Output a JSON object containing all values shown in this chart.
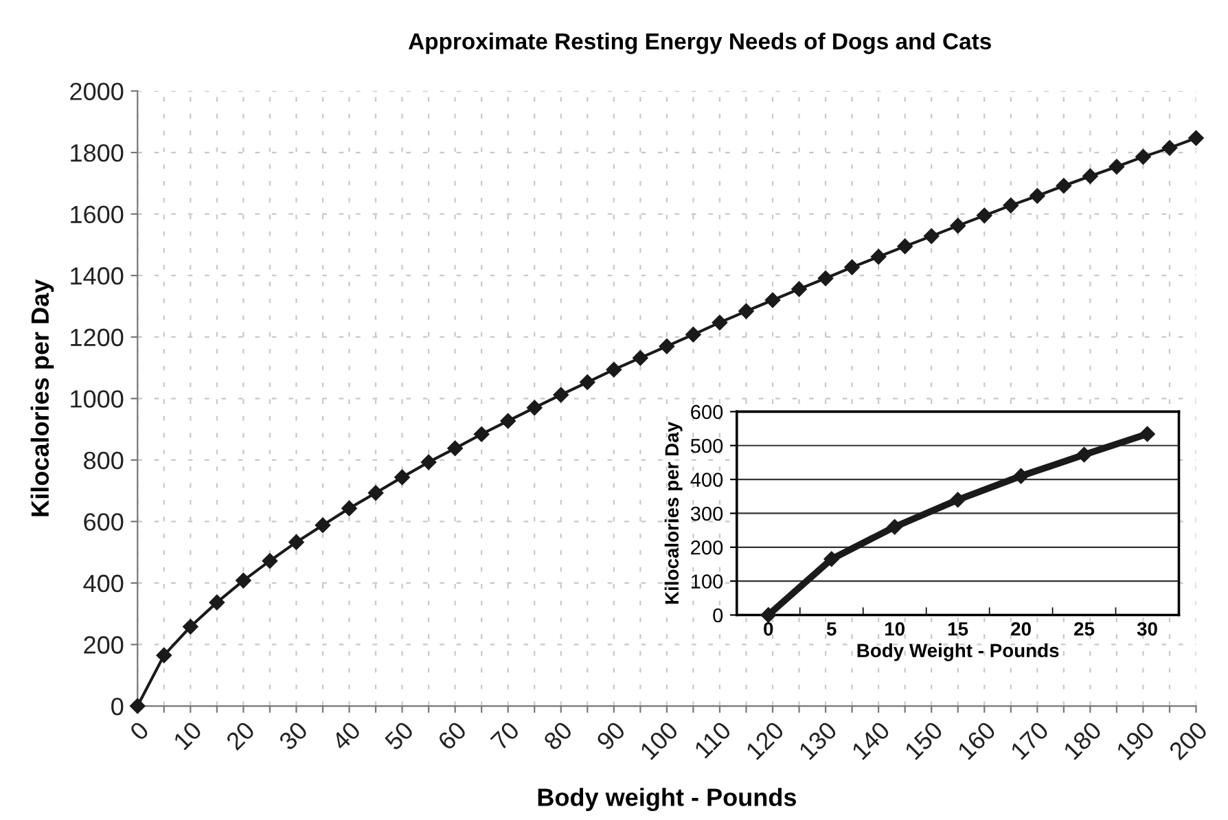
{
  "chart_data": [
    {
      "type": "line",
      "title": "Approximate Resting Energy Needs of Dogs and Cats",
      "xlabel": "Body weight - Pounds",
      "ylabel": "Kilocalories per Day",
      "x": [
        0,
        5,
        10,
        15,
        20,
        25,
        30,
        35,
        40,
        45,
        50,
        55,
        60,
        65,
        70,
        75,
        80,
        85,
        90,
        95,
        100,
        105,
        110,
        115,
        120,
        125,
        130,
        135,
        140,
        145,
        150,
        155,
        160,
        165,
        170,
        175,
        180,
        185,
        190,
        195,
        200
      ],
      "series": [
        {
          "color": "#1a1a1a",
          "values": [
            0,
            165,
            258,
            337,
            408,
            472,
            533,
            588,
            643,
            693,
            744,
            793,
            838,
            884,
            927,
            970,
            1012,
            1053,
            1094,
            1132,
            1170,
            1208,
            1247,
            1284,
            1320,
            1356,
            1391,
            1427,
            1461,
            1495,
            1528,
            1562,
            1595,
            1628,
            1659,
            1692,
            1723,
            1754,
            1786,
            1815,
            1847
          ]
        }
      ],
      "xlim": [
        0,
        200
      ],
      "ylim": [
        0,
        2000
      ],
      "xticks": [
        0,
        {
          "value": 5,
          "label": null
        },
        10,
        {
          "value": 15,
          "label": null
        },
        20,
        {
          "value": 25,
          "label": null
        },
        30,
        {
          "value": 35,
          "label": null
        },
        40,
        {
          "value": 45,
          "label": null
        },
        50,
        {
          "value": 55,
          "label": null
        },
        60,
        {
          "value": 65,
          "label": null
        },
        70,
        {
          "value": 75,
          "label": null
        },
        80,
        {
          "value": 85,
          "label": null
        },
        90,
        {
          "value": 95,
          "label": null
        },
        100,
        {
          "value": 105,
          "label": null
        },
        110,
        {
          "value": 115,
          "label": null
        },
        120,
        {
          "value": 125,
          "label": null
        },
        130,
        {
          "value": 135,
          "label": null
        },
        140,
        {
          "value": 145,
          "label": null
        },
        150,
        {
          "value": 155,
          "label": null
        },
        160,
        {
          "value": 165,
          "label": null
        },
        170,
        {
          "value": 175,
          "label": null
        },
        180,
        {
          "value": 185,
          "label": null
        },
        190,
        {
          "value": 195,
          "label": null
        },
        200
      ],
      "yticks": [
        0,
        200,
        400,
        600,
        800,
        1000,
        1200,
        1400,
        1600,
        1800,
        2000
      ],
      "grid": true,
      "marker": "diamond",
      "line_style": "solid",
      "legend": false
    },
    {
      "type": "line",
      "xlabel": "Body Weight - Pounds",
      "ylabel": "Kilocalories per Day",
      "categories": [
        "0",
        "5",
        "10",
        "15",
        "20",
        "25",
        "30"
      ],
      "series": [
        {
          "color": "#1a1a1a",
          "values": [
            0,
            165,
            260,
            340,
            410,
            473,
            534
          ]
        }
      ],
      "ylim": [
        0,
        600
      ],
      "yticks": [
        0,
        100,
        200,
        300,
        400,
        500,
        600
      ],
      "grid": "y",
      "marker": "diamond",
      "line_style": "solid",
      "legend": false
    }
  ]
}
